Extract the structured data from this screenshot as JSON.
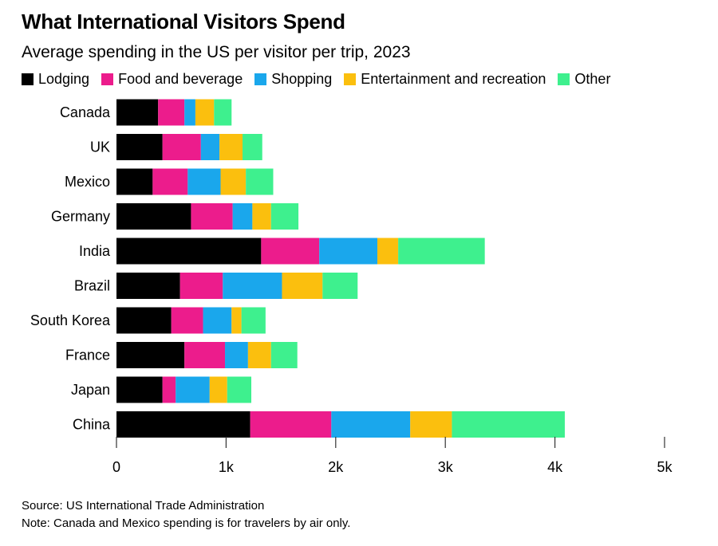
{
  "chart_data": {
    "type": "bar",
    "orientation": "horizontal",
    "stacked": true,
    "title": "What International Visitors Spend",
    "subtitle": "Average spending in the US per visitor per trip, 2023",
    "categories": [
      "Canada",
      "UK",
      "Mexico",
      "Germany",
      "India",
      "Brazil",
      "South Korea",
      "France",
      "Japan",
      "China"
    ],
    "series": [
      {
        "name": "Lodging",
        "color": "#000000",
        "values": [
          380,
          420,
          330,
          680,
          1320,
          580,
          500,
          620,
          420,
          1220
        ]
      },
      {
        "name": "Food and beverage",
        "color": "#ec1c8c",
        "values": [
          240,
          350,
          320,
          380,
          530,
          390,
          290,
          370,
          120,
          740
        ]
      },
      {
        "name": "Shopping",
        "color": "#1aa7ec",
        "values": [
          100,
          170,
          300,
          180,
          530,
          540,
          260,
          210,
          310,
          720
        ]
      },
      {
        "name": "Entertainment and recreation",
        "color": "#fbbf0e",
        "values": [
          170,
          210,
          230,
          170,
          190,
          370,
          90,
          210,
          160,
          380
        ]
      },
      {
        "name": "Other",
        "color": "#3ef08e",
        "values": [
          160,
          180,
          250,
          250,
          790,
          320,
          220,
          240,
          220,
          1030
        ]
      }
    ],
    "x_ticks": [
      "0",
      "1k",
      "2k",
      "3k",
      "4k",
      "5k"
    ],
    "x_tick_values": [
      0,
      1000,
      2000,
      3000,
      4000,
      5000
    ],
    "xlim": [
      0,
      5000
    ],
    "grid": false,
    "legend_position": "top"
  },
  "footer": {
    "source": "Source: US International Trade Administration",
    "note": "Note: Canada and Mexico spending is for travelers by air only."
  }
}
